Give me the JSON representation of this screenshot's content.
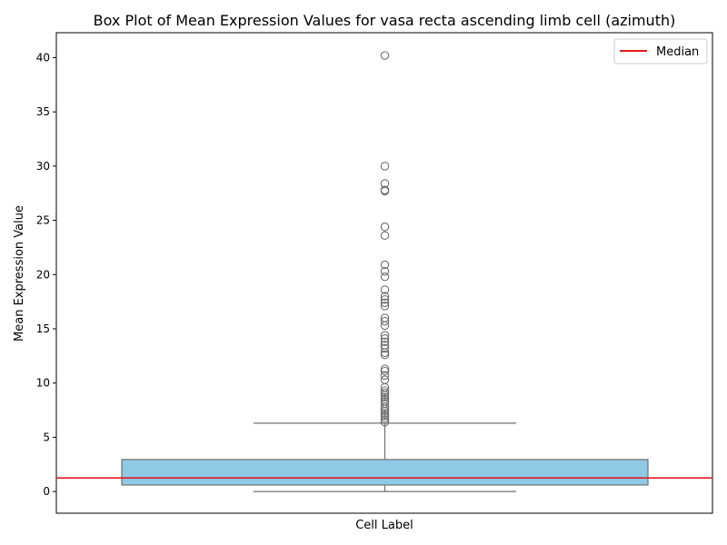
{
  "chart_data": {
    "type": "box",
    "title": "Box Plot of Mean Expression Values for vasa recta ascending limb cell (azimuth)",
    "xlabel": "Cell Label",
    "ylabel": "Mean Expression Value",
    "ylim": [
      -2,
      42.3
    ],
    "yticks": [
      0,
      5,
      10,
      15,
      20,
      25,
      30,
      35,
      40
    ],
    "grid": false,
    "legend": {
      "position": "top-right",
      "entries": [
        {
          "label": "Median",
          "color": "#e41a1c",
          "marker": "line"
        }
      ]
    },
    "box": {
      "whisker_low": 0.0,
      "q1": 0.6,
      "median": 1.25,
      "q3": 2.95,
      "whisker_high": 6.3,
      "fill_color": "#8ecae6",
      "edge_color": "#707070"
    },
    "median_line": {
      "value": 1.25,
      "color": "#e41a1c"
    },
    "outliers": [
      6.4,
      6.6,
      6.8,
      7.0,
      7.2,
      7.4,
      7.6,
      7.8,
      8.1,
      8.3,
      8.5,
      8.7,
      8.9,
      9.1,
      9.3,
      9.6,
      10.3,
      10.7,
      11.1,
      11.3,
      12.6,
      12.8,
      13.2,
      13.5,
      13.8,
      14.1,
      14.4,
      15.3,
      15.7,
      16.0,
      17.1,
      17.4,
      17.7,
      18.0,
      18.6,
      19.8,
      20.3,
      20.9,
      23.6,
      24.4,
      27.7,
      27.8,
      28.4,
      30.0,
      40.2
    ]
  }
}
